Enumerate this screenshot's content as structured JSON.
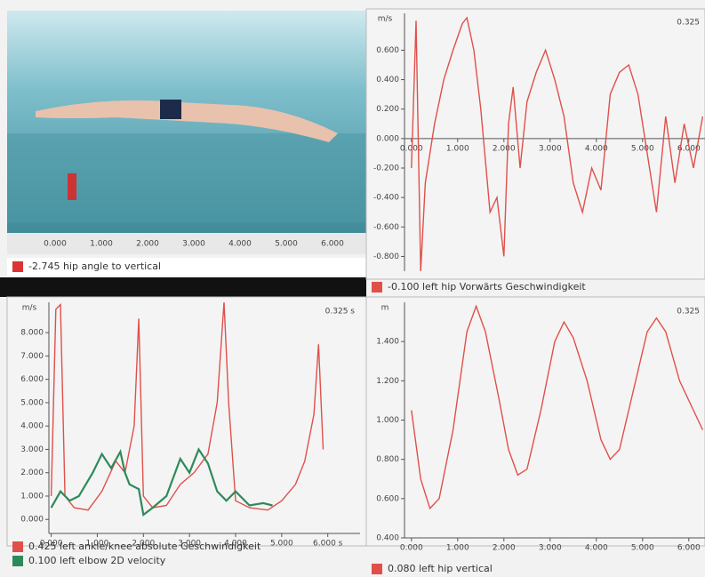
{
  "video": {
    "time_ticks": [
      "0.000",
      "1.000",
      "2.000",
      "3.000",
      "4.000",
      "5.000",
      "6.000"
    ],
    "caption": "-2.745 hip angle to vertical"
  },
  "chart_data": [
    {
      "type": "line",
      "y_label": "m/s",
      "corner_label": "0.325",
      "xlim": [
        -0.15,
        6.35
      ],
      "ylim": [
        -0.9,
        0.85
      ],
      "xticks": [
        {
          "value": 0,
          "label": "0.000"
        },
        {
          "value": 1,
          "label": "1.000"
        },
        {
          "value": 2,
          "label": "2.000"
        },
        {
          "value": 3,
          "label": "3.000"
        },
        {
          "value": 4,
          "label": "4.000"
        },
        {
          "value": 5,
          "label": "5.000"
        },
        {
          "value": 6,
          "label": "6.000"
        }
      ],
      "yticks": [
        {
          "value": 0.6,
          "label": "0.600"
        },
        {
          "value": 0.4,
          "label": "0.400"
        },
        {
          "value": 0.2,
          "label": "0.200"
        },
        {
          "value": 0,
          "label": "0.000"
        },
        {
          "value": -0.2,
          "label": "-0.200"
        },
        {
          "value": -0.4,
          "label": "-0.400"
        },
        {
          "value": -0.6,
          "label": "-0.600"
        },
        {
          "value": -0.8,
          "label": "-0.800"
        }
      ],
      "series": [
        {
          "name": "-0.100 left hip Vorwärts Geschwindigkeit",
          "color": "#e0504a",
          "x": [
            0,
            0.1,
            0.2,
            0.3,
            0.5,
            0.7,
            0.9,
            1.1,
            1.2,
            1.35,
            1.5,
            1.7,
            1.85,
            2.0,
            2.1,
            2.2,
            2.35,
            2.5,
            2.7,
            2.9,
            3.1,
            3.3,
            3.5,
            3.7,
            3.9,
            4.1,
            4.3,
            4.5,
            4.7,
            4.9,
            5.1,
            5.3,
            5.5,
            5.7,
            5.9,
            6.1,
            6.3
          ],
          "values": [
            -0.2,
            0.8,
            -0.9,
            -0.3,
            0.1,
            0.4,
            0.6,
            0.78,
            0.82,
            0.6,
            0.2,
            -0.5,
            -0.4,
            -0.8,
            0.1,
            0.35,
            -0.2,
            0.25,
            0.45,
            0.6,
            0.4,
            0.15,
            -0.3,
            -0.5,
            -0.2,
            -0.35,
            0.3,
            0.45,
            0.5,
            0.3,
            -0.1,
            -0.5,
            0.15,
            -0.3,
            0.1,
            -0.2,
            0.15
          ]
        }
      ]
    },
    {
      "type": "line",
      "y_label": "m/s",
      "corner_label": "0.325 s",
      "xlim": [
        -0.05,
        6.7
      ],
      "ylim": [
        -0.6,
        9.3
      ],
      "xticks": [
        {
          "value": 0,
          "label": "0.000"
        },
        {
          "value": 1,
          "label": "1.000"
        },
        {
          "value": 2,
          "label": "2.000"
        },
        {
          "value": 3,
          "label": "3.000"
        },
        {
          "value": 4,
          "label": "4.000"
        },
        {
          "value": 5,
          "label": "5.000"
        },
        {
          "value": 6,
          "label": "6.000 s"
        }
      ],
      "yticks": [
        {
          "value": 8,
          "label": "8.000"
        },
        {
          "value": 7,
          "label": "7.000"
        },
        {
          "value": 6,
          "label": "6.000"
        },
        {
          "value": 5,
          "label": "5.000"
        },
        {
          "value": 4,
          "label": "4.000"
        },
        {
          "value": 3,
          "label": "3.000"
        },
        {
          "value": 2,
          "label": "2.000"
        },
        {
          "value": 1,
          "label": "1.000"
        },
        {
          "value": 0,
          "label": "0.000"
        }
      ],
      "series": [
        {
          "name": "0.425 left ankle/knee absolute Geschwindigkeit",
          "color": "#e0504a",
          "x": [
            0,
            0.1,
            0.2,
            0.3,
            0.5,
            0.8,
            1.1,
            1.4,
            1.6,
            1.8,
            1.9,
            2.0,
            2.2,
            2.5,
            2.8,
            3.1,
            3.4,
            3.6,
            3.75,
            3.85,
            4.0,
            4.3,
            4.7,
            5.0,
            5.3,
            5.5,
            5.7,
            5.8,
            5.9
          ],
          "values": [
            1,
            9,
            9.2,
            1,
            0.5,
            0.4,
            1.2,
            2.5,
            2,
            4,
            8.6,
            1,
            0.5,
            0.6,
            1.5,
            2,
            2.8,
            5,
            9.3,
            5,
            0.8,
            0.5,
            0.4,
            0.8,
            1.5,
            2.5,
            4.5,
            7.5,
            3
          ]
        },
        {
          "name": "0.100 left elbow 2D velocity",
          "color": "#2e8a5a",
          "x": [
            0,
            0.2,
            0.4,
            0.6,
            0.9,
            1.1,
            1.3,
            1.5,
            1.6,
            1.7,
            1.9,
            2.0,
            2.2,
            2.5,
            2.8,
            3.0,
            3.2,
            3.4,
            3.6,
            3.8,
            4.0,
            4.3,
            4.6,
            4.8
          ],
          "values": [
            0.5,
            1.2,
            0.8,
            1.0,
            2.0,
            2.8,
            2.2,
            2.9,
            2.0,
            1.5,
            1.3,
            0.2,
            0.5,
            1.0,
            2.6,
            2.0,
            3.0,
            2.4,
            1.2,
            0.8,
            1.2,
            0.6,
            0.7,
            0.6
          ]
        }
      ]
    },
    {
      "type": "line",
      "y_label": "m",
      "corner_label": "0.325",
      "xlim": [
        -0.15,
        6.35
      ],
      "ylim": [
        0.4,
        1.6
      ],
      "xticks": [
        {
          "value": 0,
          "label": "0.000"
        },
        {
          "value": 1,
          "label": "1.000"
        },
        {
          "value": 2,
          "label": "2.000"
        },
        {
          "value": 3,
          "label": "3.000"
        },
        {
          "value": 4,
          "label": "4.000"
        },
        {
          "value": 5,
          "label": "5.000"
        },
        {
          "value": 6,
          "label": "6.000"
        }
      ],
      "yticks": [
        {
          "value": 1.4,
          "label": "1.400"
        },
        {
          "value": 1.2,
          "label": "1.200"
        },
        {
          "value": 1,
          "label": "1.000"
        },
        {
          "value": 0.8,
          "label": "0.800"
        },
        {
          "value": 0.6,
          "label": "0.600"
        },
        {
          "value": 0.4,
          "label": "0.400"
        }
      ],
      "series": [
        {
          "name": "0.080 left hip vertical",
          "color": "#e0504a",
          "x": [
            0,
            0.2,
            0.4,
            0.6,
            0.9,
            1.2,
            1.4,
            1.6,
            1.9,
            2.1,
            2.3,
            2.5,
            2.8,
            3.1,
            3.3,
            3.5,
            3.8,
            4.1,
            4.3,
            4.5,
            4.8,
            5.1,
            5.3,
            5.5,
            5.8,
            6.1,
            6.3
          ],
          "values": [
            1.05,
            0.7,
            0.55,
            0.6,
            0.95,
            1.45,
            1.58,
            1.45,
            1.1,
            0.85,
            0.72,
            0.75,
            1.05,
            1.4,
            1.5,
            1.42,
            1.2,
            0.9,
            0.8,
            0.85,
            1.15,
            1.45,
            1.52,
            1.45,
            1.2,
            1.05,
            0.95
          ]
        }
      ]
    }
  ]
}
